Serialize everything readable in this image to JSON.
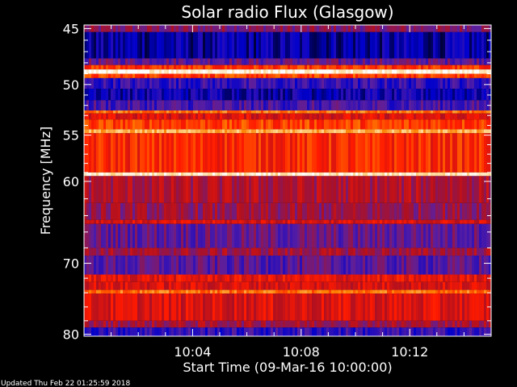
{
  "chart_data": {
    "type": "heatmap",
    "title": "Solar radio Flux (Glasgow)",
    "xlabel": "Start Time (09-Mar-16 10:00:00)",
    "ylabel": "Frequency [MHz]",
    "x_tick_labels": [
      "10:04",
      "10:08",
      "10:12"
    ],
    "x_ticks_minutes": [
      4,
      8,
      12
    ],
    "x_range_minutes": [
      0,
      15
    ],
    "y_tick_labels": [
      "45",
      "50",
      "55",
      "60",
      "70",
      "80"
    ],
    "y_ticks_mhz": [
      45,
      50,
      55,
      60,
      70,
      80
    ],
    "y_range_mhz": [
      44.7,
      80.3
    ],
    "y_scale": "log",
    "grid": false,
    "colormap": [
      "#000000",
      "#0000cc",
      "#5a1fa0",
      "#b01020",
      "#ff1a00",
      "#ff7f00",
      "#ffd080",
      "#ffffff"
    ],
    "frequency_bands": [
      {
        "from": 44.7,
        "to": 45.3,
        "level": 0.35
      },
      {
        "from": 45.3,
        "to": 47.6,
        "level": 0.12
      },
      {
        "from": 47.6,
        "to": 48.2,
        "level": 0.3
      },
      {
        "from": 48.2,
        "to": 48.6,
        "level": 0.6
      },
      {
        "from": 48.6,
        "to": 49.0,
        "level": 0.97
      },
      {
        "from": 49.0,
        "to": 49.4,
        "level": 0.62
      },
      {
        "from": 49.4,
        "to": 50.4,
        "level": 0.22
      },
      {
        "from": 50.4,
        "to": 51.5,
        "level": 0.15
      },
      {
        "from": 51.5,
        "to": 52.5,
        "level": 0.25
      },
      {
        "from": 52.5,
        "to": 52.8,
        "level": 0.7
      },
      {
        "from": 52.8,
        "to": 53.4,
        "level": 0.5
      },
      {
        "from": 53.4,
        "to": 54.4,
        "level": 0.62
      },
      {
        "from": 54.4,
        "to": 54.8,
        "level": 0.8
      },
      {
        "from": 54.8,
        "to": 59.0,
        "level": 0.58
      },
      {
        "from": 59.0,
        "to": 59.4,
        "level": 0.92
      },
      {
        "from": 59.4,
        "to": 62.5,
        "level": 0.42
      },
      {
        "from": 62.5,
        "to": 64.5,
        "level": 0.38
      },
      {
        "from": 64.5,
        "to": 65.0,
        "level": 0.5
      },
      {
        "from": 65.0,
        "to": 68.0,
        "level": 0.3
      },
      {
        "from": 68.0,
        "to": 69.0,
        "level": 0.4
      },
      {
        "from": 69.0,
        "to": 71.5,
        "level": 0.28
      },
      {
        "from": 71.5,
        "to": 72.5,
        "level": 0.52
      },
      {
        "from": 72.5,
        "to": 73.6,
        "level": 0.5
      },
      {
        "from": 73.6,
        "to": 74.1,
        "level": 0.7
      },
      {
        "from": 74.1,
        "to": 78.0,
        "level": 0.5
      },
      {
        "from": 78.0,
        "to": 79.0,
        "level": 0.4
      },
      {
        "from": 79.0,
        "to": 80.3,
        "level": 0.22
      }
    ]
  },
  "footer": {
    "updated_text": "Updated Thu Feb 22 01:25:59 2018"
  }
}
